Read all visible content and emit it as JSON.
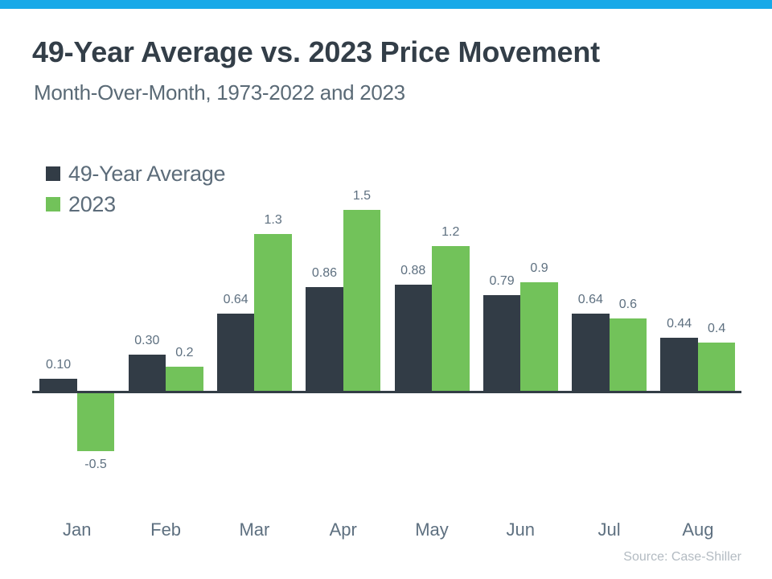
{
  "topbar": {
    "color": "#18a9e8"
  },
  "header": {
    "title": "49-Year Average vs. 2023 Price Movement",
    "subtitle": "Month-Over-Month, 1973-2022 and 2023"
  },
  "legend": [
    {
      "label": "49-Year Average",
      "color": "#323c46"
    },
    {
      "label": "2023",
      "color": "#72c25a"
    }
  ],
  "source": "Source: Case-Shiller",
  "chart_data": {
    "type": "bar",
    "title": "49-Year Average vs. 2023 Price Movement",
    "subtitle": "Month-Over-Month, 1973-2022 and 2023",
    "categories": [
      "Jan",
      "Feb",
      "Mar",
      "Apr",
      "May",
      "Jun",
      "Jul",
      "Aug"
    ],
    "series": [
      {
        "name": "49-Year Average",
        "color": "#323c46",
        "values": [
          0.1,
          0.3,
          0.64,
          0.86,
          0.88,
          0.79,
          0.64,
          0.44
        ],
        "labels": [
          "0.10",
          "0.30",
          "0.64",
          "0.86",
          "0.88",
          "0.79",
          "0.64",
          "0.44"
        ]
      },
      {
        "name": "2023",
        "color": "#72c25a",
        "values": [
          -0.5,
          0.2,
          1.3,
          1.5,
          1.2,
          0.9,
          0.6,
          0.4
        ],
        "labels": [
          "-0.5",
          "0.2",
          "1.3",
          "1.5",
          "1.2",
          "0.9",
          "0.6",
          "0.4"
        ]
      }
    ],
    "xlabel": "",
    "ylabel": "",
    "ylim": [
      -0.6,
      1.6
    ],
    "grid": false,
    "axis_line_color": "#333d46",
    "value_labels": true,
    "legend_position": "top-left"
  }
}
